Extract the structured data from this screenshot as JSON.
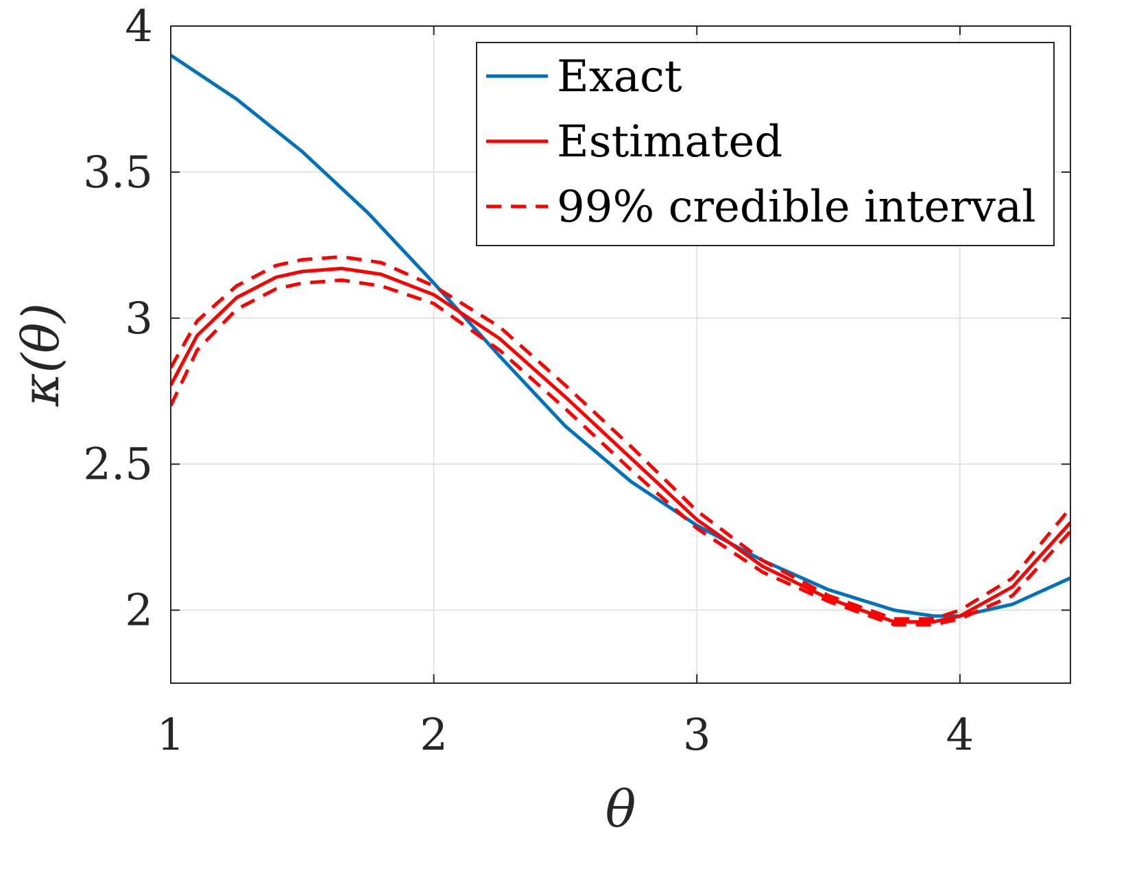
{
  "chart_data": {
    "type": "line",
    "title": "",
    "xlabel": "θ",
    "ylabel": "κ(θ)",
    "xlim": [
      1,
      4.42
    ],
    "ylim": [
      1.75,
      4
    ],
    "x_ticks": [
      "1",
      "2",
      "3",
      "4"
    ],
    "y_ticks": [
      "2",
      "2.5",
      "3",
      "3.5",
      "4"
    ],
    "x_tick_values": [
      1,
      2,
      3,
      4
    ],
    "y_tick_values": [
      2,
      2.5,
      3,
      3.5,
      4
    ],
    "grid": true,
    "legend_position": "top-right",
    "series": [
      {
        "name": "Exact",
        "color": "#0072BD",
        "style": "solid",
        "x": [
          1.0,
          1.25,
          1.5,
          1.75,
          2.0,
          2.25,
          2.5,
          2.75,
          3.0,
          3.25,
          3.5,
          3.75,
          3.9,
          4.0,
          4.2,
          4.42
        ],
        "y": [
          3.9,
          3.75,
          3.57,
          3.36,
          3.12,
          2.87,
          2.63,
          2.44,
          2.29,
          2.17,
          2.07,
          2.0,
          1.98,
          1.98,
          2.02,
          2.11
        ]
      },
      {
        "name": "Estimated",
        "color": "#FF0000",
        "style": "solid",
        "x": [
          1.0,
          1.1,
          1.25,
          1.4,
          1.5,
          1.65,
          1.8,
          2.0,
          2.25,
          2.5,
          2.75,
          3.0,
          3.25,
          3.5,
          3.75,
          3.9,
          4.0,
          4.2,
          4.42
        ],
        "y": [
          2.77,
          2.94,
          3.07,
          3.14,
          3.16,
          3.17,
          3.15,
          3.08,
          2.93,
          2.73,
          2.52,
          2.31,
          2.15,
          2.04,
          1.96,
          1.96,
          1.98,
          2.08,
          2.3
        ]
      },
      {
        "name": "99% credible interval",
        "color": "#FF0000",
        "style": "dashed",
        "x": [
          1.0,
          1.1,
          1.25,
          1.4,
          1.5,
          1.65,
          1.8,
          2.0,
          2.25,
          2.5,
          2.75,
          3.0,
          3.25,
          3.5,
          3.75,
          3.9,
          4.0,
          4.2,
          4.42
        ],
        "y": [
          2.83,
          2.99,
          3.11,
          3.18,
          3.2,
          3.21,
          3.19,
          3.11,
          2.97,
          2.77,
          2.56,
          2.34,
          2.17,
          2.05,
          1.97,
          1.97,
          2.0,
          2.11,
          2.35
        ]
      },
      {
        "name": "",
        "color": "#FF0000",
        "style": "dashed",
        "x": [
          1.0,
          1.1,
          1.25,
          1.4,
          1.5,
          1.65,
          1.8,
          2.0,
          2.25,
          2.5,
          2.75,
          3.0,
          3.25,
          3.5,
          3.75,
          3.9,
          4.0,
          4.2,
          4.42
        ],
        "y": [
          2.7,
          2.89,
          3.03,
          3.1,
          3.12,
          3.13,
          3.11,
          3.05,
          2.89,
          2.69,
          2.48,
          2.28,
          2.13,
          2.03,
          1.95,
          1.95,
          1.97,
          2.05,
          2.27
        ]
      }
    ]
  }
}
